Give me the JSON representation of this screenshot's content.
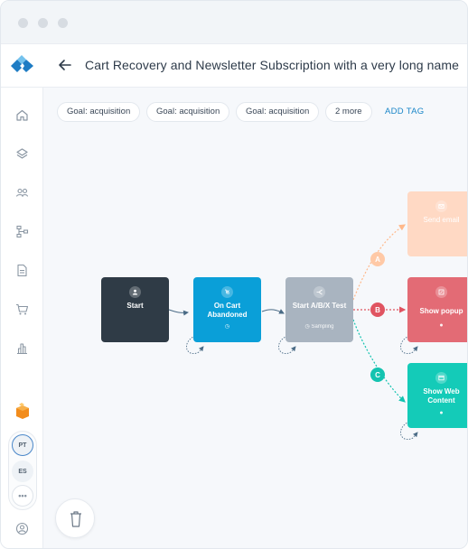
{
  "window": {
    "controls": [
      "close-dot",
      "minimize-dot",
      "maximize-dot"
    ]
  },
  "header": {
    "title": "Cart Recovery and Newsletter Subscription with a very long name"
  },
  "tags": [
    {
      "label": "Goal: acquisition"
    },
    {
      "label": "Goal: acquisition"
    },
    {
      "label": "Goal: acquisition"
    },
    {
      "label": "2 more"
    }
  ],
  "add_tag_label": "ADD TAG",
  "sidebar": {
    "items": [
      {
        "name": "home-icon"
      },
      {
        "name": "layers-icon"
      },
      {
        "name": "users-icon"
      },
      {
        "name": "flow-icon"
      },
      {
        "name": "document-icon"
      },
      {
        "name": "cart-icon"
      },
      {
        "name": "chart-icon"
      }
    ],
    "avatars": [
      {
        "initials": "PT",
        "active": true
      },
      {
        "initials": "ES",
        "active": false
      }
    ],
    "more_label": "•••"
  },
  "nodes": {
    "start": {
      "label": "Start",
      "color": "#2f3b46"
    },
    "cart": {
      "label": "On Cart Abandoned",
      "color": "#0a9fd8"
    },
    "abx": {
      "label": "Start A/B/X Test",
      "sub": "Sampling",
      "color": "#a9b4c0"
    },
    "email": {
      "label": "Send email",
      "color": "#ffd9c4"
    },
    "popup": {
      "label": "Show popup",
      "color": "#e36b75"
    },
    "web": {
      "label": "Show Web Content",
      "color": "#14cbb8"
    }
  },
  "branches": [
    {
      "label": "A",
      "color": "#ffc9a6"
    },
    {
      "label": "B",
      "color": "#e05461"
    },
    {
      "label": "C",
      "color": "#14c3b0"
    }
  ],
  "colors": {
    "accent": "#1a86c8",
    "brand_orange": "#f28c1c"
  }
}
